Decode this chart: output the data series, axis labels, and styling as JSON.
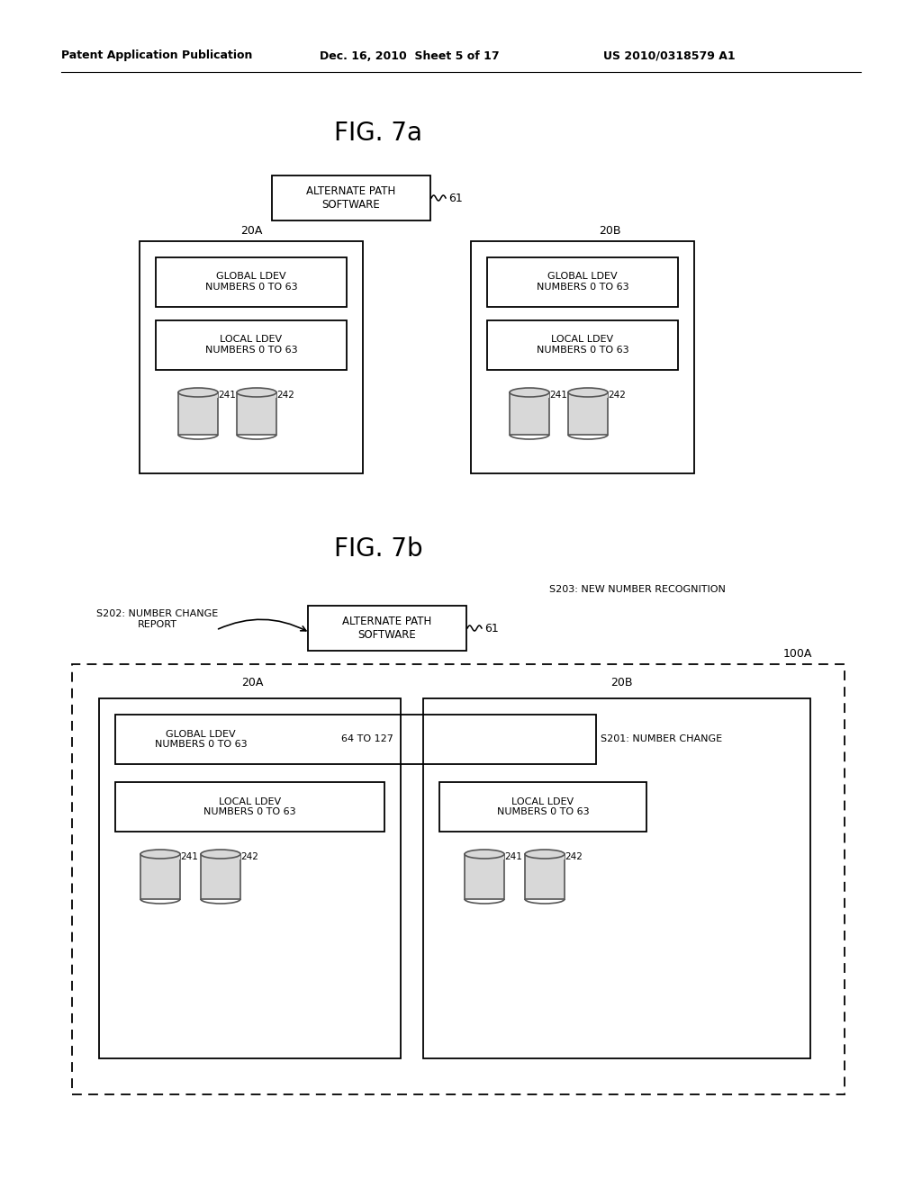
{
  "bg_color": "#ffffff",
  "header_left": "Patent Application Publication",
  "header_mid": "Dec. 16, 2010  Sheet 5 of 17",
  "header_right": "US 2010/0318579 A1",
  "fig7a_title": "FIG. 7a",
  "fig7b_title": "FIG. 7b",
  "alt_path_text": "ALTERNATE PATH\nSOFTWARE",
  "label_61": "61",
  "label_20A": "20A",
  "label_20B": "20B",
  "global_ldev_text": "GLOBAL LDEV\nNUMBERS 0 TO 63",
  "local_ldev_text": "LOCAL LDEV\nNUMBERS 0 TO 63",
  "label_241": "241",
  "label_242": "242",
  "s202_text": "S202: NUMBER CHANGE\nREPORT",
  "s203_text": "S203: NEW NUMBER RECOGNITION",
  "s201_text": "S201: NUMBER CHANGE",
  "label_100A": "100A",
  "label_64to127": "64 TO 127"
}
